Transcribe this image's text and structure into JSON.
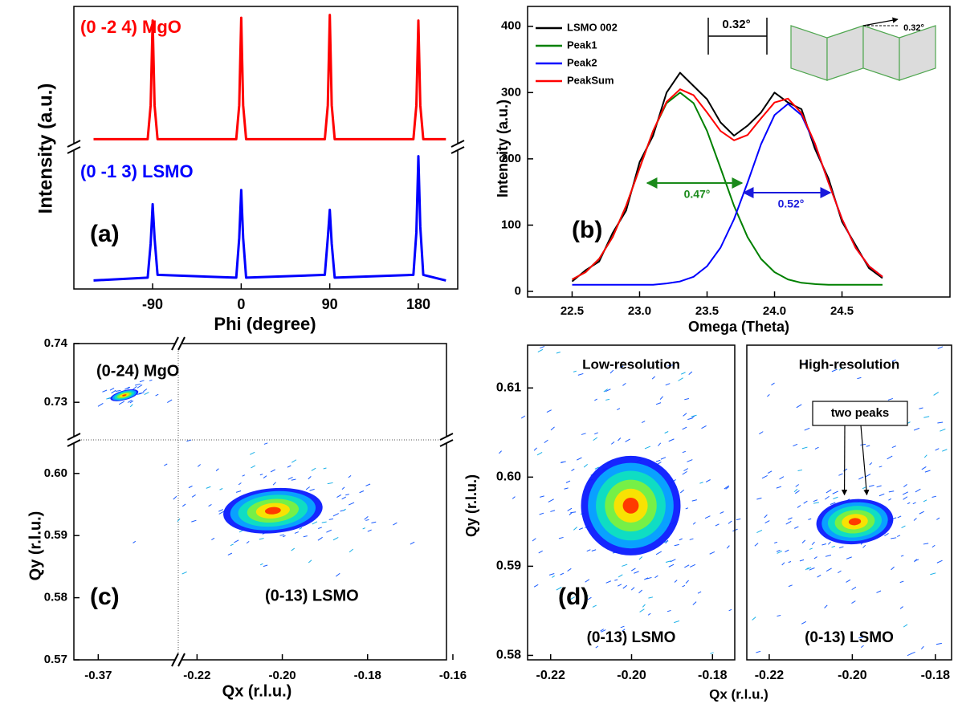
{
  "chart_data": [
    {
      "type": "line",
      "panel_label": "(a)",
      "xlabel": "Phi (degree)",
      "ylabel": "Intensity (a.u.)",
      "xlim": [
        -170,
        220
      ],
      "xticks": [
        -90,
        0,
        90,
        180
      ],
      "ylim": [
        0,
        10
      ],
      "x": [
        -150,
        -95,
        -92,
        -90,
        -88,
        -85,
        -5,
        -2,
        0,
        2,
        5,
        85,
        88,
        90,
        92,
        95,
        175,
        178,
        180,
        182,
        185,
        208
      ],
      "series": [
        {
          "name": "(0 -2 4) MgO",
          "color": "#ff0000",
          "values": [
            5.3,
            5.3,
            6.5,
            9.5,
            6.5,
            5.3,
            5.3,
            6.5,
            9.6,
            6.5,
            5.3,
            5.3,
            6.5,
            9.7,
            6.5,
            5.3,
            5.3,
            6.5,
            9.5,
            6.5,
            5.3,
            5.3
          ]
        },
        {
          "name": "(0 -1 3) LSMO",
          "color": "#0000ff",
          "values": [
            0.3,
            0.4,
            1.6,
            3.0,
            1.8,
            0.5,
            0.4,
            1.8,
            3.5,
            1.8,
            0.4,
            0.5,
            1.8,
            2.8,
            1.6,
            0.4,
            0.5,
            2.0,
            4.7,
            2.2,
            0.5,
            0.3
          ]
        }
      ]
    },
    {
      "type": "line",
      "panel_label": "(b)",
      "xlabel": "Omega (Theta)",
      "ylabel": "Intensity (a.u.)",
      "xlim": [
        22.17,
        25.3
      ],
      "xticks": [
        22.5,
        {
          "value": 23,
          "label": "23.0"
        },
        23.5,
        {
          "value": 24,
          "label": "24.0"
        },
        24.5
      ],
      "ylim": [
        -8.5,
        430
      ],
      "yticks": [
        0,
        100,
        200,
        300,
        400
      ],
      "x": [
        22.5,
        22.6,
        22.7,
        22.8,
        22.9,
        23.0,
        23.1,
        23.2,
        23.3,
        23.4,
        23.5,
        23.6,
        23.7,
        23.8,
        23.9,
        24.0,
        24.1,
        24.2,
        24.3,
        24.4,
        24.5,
        24.6,
        24.7,
        24.8
      ],
      "series": [
        {
          "name": "LSMO 002",
          "color": "#000000",
          "values": [
            15,
            32,
            45,
            88,
            122,
            195,
            235,
            300,
            330,
            310,
            290,
            255,
            235,
            250,
            270,
            300,
            285,
            275,
            215,
            170,
            105,
            70,
            35,
            20
          ]
        },
        {
          "name": "Peak1",
          "color": "#008000",
          "values": [
            18,
            29,
            49,
            82,
            129,
            186,
            242,
            284,
            300,
            284,
            242,
            186,
            129,
            82,
            49,
            29,
            18,
            13,
            11,
            10,
            10,
            10,
            10,
            10
          ]
        },
        {
          "name": "Peak2",
          "color": "#0000ff",
          "values": [
            10,
            10,
            10,
            10,
            10,
            10,
            10,
            12,
            15,
            22,
            38,
            66,
            109,
            164,
            222,
            266,
            283,
            266,
            222,
            164,
            109,
            66,
            38,
            22
          ]
        },
        {
          "name": "PeakSum",
          "color": "#ff0000",
          "values": [
            18,
            29,
            49,
            82,
            129,
            186,
            242,
            286,
            305,
            296,
            270,
            242,
            228,
            236,
            261,
            285,
            291,
            269,
            223,
            164,
            109,
            66,
            38,
            22
          ]
        }
      ],
      "annotations": [
        "0.32°",
        "0.47°",
        "0.52°",
        "0.32°"
      ]
    },
    {
      "type": "heatmap",
      "panel_label": "(c)",
      "xlabel": "Qx (r.l.u.)",
      "ylabel": "Qy (r.l.u.)",
      "x_segments": [
        {
          "xlim": [
            -0.377,
            -0.347
          ],
          "xticks": [
            -0.37
          ]
        },
        {
          "xlim": [
            -0.2244,
            -0.1615
          ],
          "xticks": [
            -0.22,
            {
              "value": -0.2,
              "label": "-0.20"
            },
            -0.18,
            -0.16
          ]
        }
      ],
      "y_segments": [
        {
          "ylim": [
            0.7236,
            0.74
          ],
          "yticks": [
            0.74,
            0.73
          ]
        },
        {
          "ylim": [
            0.57,
            0.6054
          ],
          "yticks": [
            {
              "value": 0.6,
              "label": "0.60"
            },
            0.59,
            0.58,
            0.57
          ]
        }
      ],
      "peaks": [
        {
          "name": "(0-24) MgO",
          "qx": -0.3625,
          "qy": 0.7312
        },
        {
          "name": "(0-13) LSMO",
          "qx": -0.2022,
          "qy": 0.594
        }
      ]
    },
    {
      "type": "heatmap",
      "panel_label": "(d)",
      "xlabel": "Qx (r.l.u.)",
      "ylabel": "Qy (r.l.u.)",
      "ylim": [
        0.5795,
        0.6148
      ],
      "yticks": [
        0.58,
        0.59,
        {
          "value": 0.6,
          "label": "0.60"
        },
        0.61
      ],
      "subplots": [
        {
          "title": "Low-resolution",
          "xlim": [
            -0.2257,
            -0.1745
          ],
          "xticks": [
            -0.22,
            {
              "value": -0.2,
              "label": "-0.20"
            },
            -0.18
          ],
          "peaks": [
            {
              "name": "(0-13) LSMO",
              "qx": -0.2002,
              "qy": 0.5968
            }
          ]
        },
        {
          "title": "High-resolution",
          "xlim": [
            -0.2254,
            -0.1761
          ],
          "xticks": [
            -0.22,
            {
              "value": -0.2,
              "label": "-0.20"
            },
            -0.18
          ],
          "peaks": [
            {
              "name": "(0-13) LSMO",
              "qx": -0.1994,
              "qy": 0.595
            }
          ],
          "annotation": "two peaks",
          "annotation_targets": [
            {
              "qx": -0.2019,
              "qy": 0.598
            },
            {
              "qx": -0.1965,
              "qy": 0.598
            }
          ]
        }
      ]
    }
  ]
}
